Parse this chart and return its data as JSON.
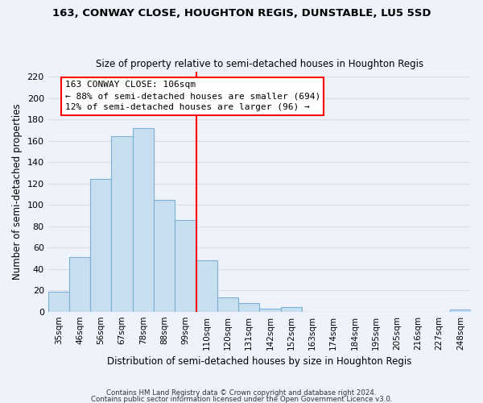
{
  "title": "163, CONWAY CLOSE, HOUGHTON REGIS, DUNSTABLE, LU5 5SD",
  "subtitle": "Size of property relative to semi-detached houses in Houghton Regis",
  "xlabel": "Distribution of semi-detached houses by size in Houghton Regis",
  "ylabel": "Number of semi-detached properties",
  "bar_labels": [
    "35sqm",
    "46sqm",
    "56sqm",
    "67sqm",
    "78sqm",
    "88sqm",
    "99sqm",
    "110sqm",
    "120sqm",
    "131sqm",
    "142sqm",
    "152sqm",
    "163sqm",
    "174sqm",
    "184sqm",
    "195sqm",
    "205sqm",
    "216sqm",
    "227sqm",
    "248sqm"
  ],
  "bar_values": [
    19,
    51,
    124,
    164,
    172,
    105,
    86,
    48,
    13,
    8,
    3,
    4,
    0,
    0,
    0,
    0,
    0,
    0,
    0,
    2
  ],
  "bar_color": "#c8dff0",
  "bar_edge_color": "#7ab0d4",
  "vline_color": "red",
  "annotation_title": "163 CONWAY CLOSE: 106sqm",
  "annotation_line1": "← 88% of semi-detached houses are smaller (694)",
  "annotation_line2": "12% of semi-detached houses are larger (96) →",
  "annotation_box_color": "white",
  "annotation_box_edge": "red",
  "ylim": [
    0,
    225
  ],
  "yticks": [
    0,
    20,
    40,
    60,
    80,
    100,
    120,
    140,
    160,
    180,
    200,
    220
  ],
  "footer1": "Contains HM Land Registry data © Crown copyright and database right 2024.",
  "footer2": "Contains public sector information licensed under the Open Government Licence v3.0.",
  "bg_color": "#eef2fa",
  "grid_color": "#d8dde8"
}
